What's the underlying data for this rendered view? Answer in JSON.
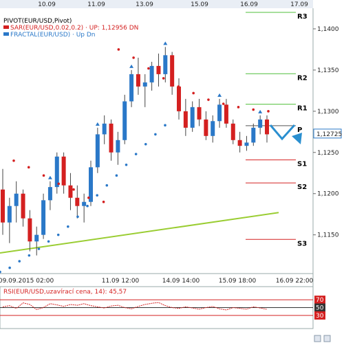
{
  "chart_data": [
    {
      "type": "candlestick",
      "legend": [
        {
          "text": "PIVOT(EUR/USD,Pivot)",
          "color": "#000000"
        },
        {
          "text": "SAR(EUR/USD,0.02,0.2)  · UP: 1,12956  DN",
          "color": "#d42020"
        },
        {
          "text": "FRACTAL(EUR/USD) · Up  Dn",
          "color": "#2a78c8"
        }
      ],
      "top_date_ticks": [
        "10.09",
        "11.09",
        "13.09",
        "15.09",
        "16.09",
        "17.09"
      ],
      "bottom_date_ticks": [
        "09.09.2015 02:00",
        "11.09 12:00",
        "14.09 14:00",
        "15.09 18:00",
        "16.09 22:00"
      ],
      "y_ticks": [
        "1,1400",
        "1,1350",
        "1,1300",
        "1,1250",
        "1,1200",
        "1,1150"
      ],
      "ylim": [
        1.1103,
        1.1425
      ],
      "current_price": "1,12725",
      "current_value": 1.12725,
      "pivot_levels": [
        {
          "name": "R3",
          "value": 1.142
        },
        {
          "name": "R2",
          "value": 1.13455
        },
        {
          "name": "R1",
          "value": 1.13085
        },
        {
          "name": "P",
          "value": 1.12825
        },
        {
          "name": "S1",
          "value": 1.1241
        },
        {
          "name": "S2",
          "value": 1.1213
        },
        {
          "name": "S3",
          "value": 1.11445
        }
      ],
      "trendline": {
        "start": 1.1128,
        "end": 1.1177
      },
      "candles": [
        [
          1.1205,
          1.123,
          1.115,
          1.1165
        ],
        [
          1.1165,
          1.1195,
          1.114,
          1.1185
        ],
        [
          1.1185,
          1.1215,
          1.1165,
          1.12
        ],
        [
          1.12,
          1.1205,
          1.116,
          1.117
        ],
        [
          1.117,
          1.118,
          1.113,
          1.1142
        ],
        [
          1.1142,
          1.116,
          1.1125,
          1.115
        ],
        [
          1.115,
          1.12,
          1.1145,
          1.1192
        ],
        [
          1.1192,
          1.1215,
          1.118,
          1.1208
        ],
        [
          1.1208,
          1.125,
          1.12,
          1.1245
        ],
        [
          1.1245,
          1.125,
          1.12,
          1.121
        ],
        [
          1.121,
          1.1225,
          1.118,
          1.1195
        ],
        [
          1.1195,
          1.121,
          1.117,
          1.1185
        ],
        [
          1.1185,
          1.12,
          1.1165,
          1.119
        ],
        [
          1.119,
          1.124,
          1.1185,
          1.1232
        ],
        [
          1.1232,
          1.128,
          1.1225,
          1.1272
        ],
        [
          1.1272,
          1.1295,
          1.126,
          1.1285
        ],
        [
          1.1285,
          1.129,
          1.124,
          1.125
        ],
        [
          1.125,
          1.1275,
          1.1235,
          1.1265
        ],
        [
          1.1265,
          1.132,
          1.126,
          1.1312
        ],
        [
          1.1312,
          1.135,
          1.1305,
          1.1345
        ],
        [
          1.1345,
          1.1365,
          1.132,
          1.133
        ],
        [
          1.133,
          1.1345,
          1.1305,
          1.1335
        ],
        [
          1.1335,
          1.136,
          1.1325,
          1.1355
        ],
        [
          1.1355,
          1.137,
          1.133,
          1.1345
        ],
        [
          1.1345,
          1.1378,
          1.1335,
          1.1368
        ],
        [
          1.1368,
          1.1372,
          1.132,
          1.133
        ],
        [
          1.133,
          1.134,
          1.129,
          1.13
        ],
        [
          1.13,
          1.1315,
          1.127,
          1.128
        ],
        [
          1.128,
          1.1312,
          1.1275,
          1.1305
        ],
        [
          1.1305,
          1.1315,
          1.1282,
          1.129
        ],
        [
          1.129,
          1.13,
          1.1265,
          1.127
        ],
        [
          1.127,
          1.1295,
          1.1262,
          1.1288
        ],
        [
          1.1288,
          1.1315,
          1.128,
          1.1308
        ],
        [
          1.1308,
          1.1315,
          1.128,
          1.1285
        ],
        [
          1.1285,
          1.129,
          1.126,
          1.1265
        ],
        [
          1.1265,
          1.1275,
          1.125,
          1.1258
        ],
        [
          1.1258,
          1.127,
          1.1252,
          1.1262
        ],
        [
          1.1262,
          1.1285,
          1.1258,
          1.128
        ],
        [
          1.128,
          1.1295,
          1.1272,
          1.129
        ],
        [
          1.129,
          1.1295,
          1.1262,
          1.1272
        ]
      ],
      "sar_up": [
        1.1105,
        1.111,
        1.1118,
        1.1125,
        1.1133,
        1.1142,
        1.115,
        1.116,
        1.1172,
        1.1185,
        1.1198,
        1.121,
        1.1222,
        1.1235,
        1.1248,
        1.126,
        1.1272,
        1.1283
      ],
      "sar_dn": [
        1.124,
        1.1232,
        1.1222,
        1.1212,
        1.1205,
        1.1195,
        1.119,
        1.1375,
        1.1365,
        1.1352,
        1.134,
        1.133,
        1.1322,
        1.1314,
        1.1309,
        1.1305,
        1.1302,
        1.13
      ],
      "oscillator": {
        "label": "RSI(EUR/USD,uzavírací cena, 14): 45,57",
        "levels": [
          70,
          50,
          30
        ],
        "ylim": [
          0,
          100
        ],
        "values": [
          52,
          55,
          48,
          62,
          58,
          45,
          50,
          60,
          57,
          53,
          58,
          56,
          60,
          55,
          52,
          49,
          54,
          56,
          50,
          47,
          53,
          58,
          61,
          63,
          55,
          50,
          48,
          52,
          49,
          46,
          50,
          53,
          47,
          44,
          50,
          48,
          46,
          52,
          49,
          45.57
        ]
      }
    }
  ]
}
